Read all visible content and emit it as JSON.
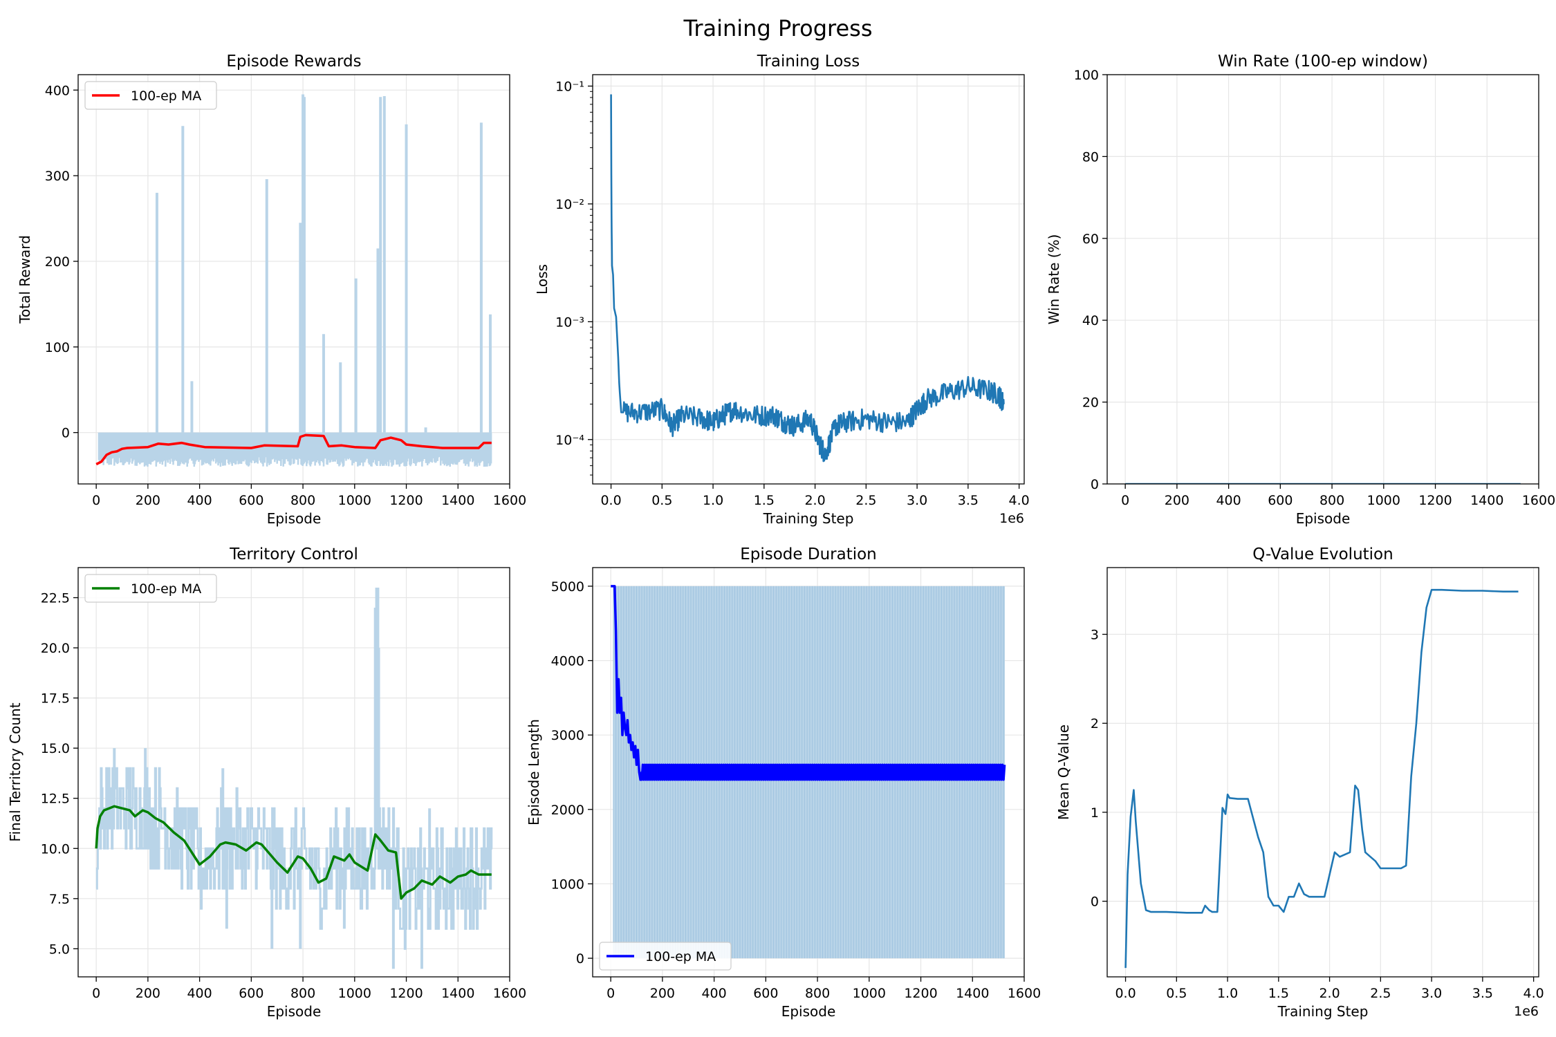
{
  "figure": {
    "title": "Training Progress"
  },
  "chart_data": [
    {
      "id": "rewards",
      "type": "line",
      "title": "Episode Rewards",
      "xlabel": "Episode",
      "ylabel": "Total Reward",
      "xlim": [
        -70,
        1600
      ],
      "ylim": [
        -60,
        418
      ],
      "xticks": [
        0,
        200,
        400,
        600,
        800,
        1000,
        1200,
        1400,
        1600
      ],
      "xtick_labels": [
        "0",
        "200",
        "400",
        "600",
        "800",
        "1000",
        "1200",
        "1400",
        "1600"
      ],
      "yticks": [
        0,
        100,
        200,
        300,
        400
      ],
      "ytick_labels": [
        "0",
        "100",
        "200",
        "300",
        "400"
      ],
      "grid": true,
      "legend": {
        "placement": "upper-left",
        "entries": [
          "100-ep MA"
        ]
      },
      "band": {
        "color": "#b9d4e8",
        "x": [
          10,
          1530
        ],
        "low": -40,
        "high": 0
      },
      "spikes": [
        [
          235,
          280
        ],
        [
          335,
          358
        ],
        [
          370,
          60
        ],
        [
          660,
          296
        ],
        [
          790,
          245
        ],
        [
          800,
          395
        ],
        [
          805,
          392
        ],
        [
          880,
          115
        ],
        [
          945,
          82
        ],
        [
          1005,
          180
        ],
        [
          1090,
          215
        ],
        [
          1100,
          392
        ],
        [
          1115,
          393
        ],
        [
          1200,
          360
        ],
        [
          1275,
          6
        ],
        [
          1490,
          362
        ],
        [
          1525,
          138
        ]
      ],
      "series": [
        {
          "name": "100-ep MA",
          "color": "#ff0000",
          "kind": "line",
          "x": [
            0,
            20,
            40,
            60,
            80,
            100,
            120,
            200,
            240,
            280,
            330,
            360,
            420,
            600,
            650,
            780,
            790,
            810,
            880,
            900,
            950,
            1000,
            1080,
            1100,
            1140,
            1180,
            1200,
            1260,
            1340,
            1480,
            1500,
            1530
          ],
          "y": [
            -37,
            -34,
            -26,
            -23,
            -22,
            -19,
            -18,
            -17,
            -13,
            -14,
            -12,
            -14,
            -17,
            -18,
            -15,
            -16,
            -5,
            -3,
            -4,
            -16,
            -15,
            -17,
            -18,
            -9,
            -6,
            -9,
            -14,
            -16,
            -18,
            -18,
            -12,
            -12
          ]
        }
      ]
    },
    {
      "id": "loss",
      "type": "line",
      "title": "Training Loss",
      "xlabel": "Training Step",
      "ylabel": "Loss",
      "yscale": "log",
      "xlim": [
        -0.18,
        4.05
      ],
      "ylim": [
        4.2e-05,
        0.125
      ],
      "x_multiplier": "1e6",
      "xticks": [
        0.0,
        0.5,
        1.0,
        1.5,
        2.0,
        2.5,
        3.0,
        3.5,
        4.0
      ],
      "xtick_labels": [
        "0.0",
        "0.5",
        "1.0",
        "1.5",
        "2.0",
        "2.5",
        "3.0",
        "3.5",
        "4.0"
      ],
      "yticks": [
        0.0001,
        0.001,
        0.01,
        0.1
      ],
      "ytick_labels": [
        "10⁻⁴",
        "10⁻³",
        "10⁻²",
        "10⁻¹"
      ],
      "grid": true,
      "series": [
        {
          "color": "#1f77b4",
          "kind": "line",
          "noise": 0.07,
          "x": [
            0.0,
            0.005,
            0.01,
            0.02,
            0.03,
            0.05,
            0.07,
            0.08,
            0.1,
            0.12,
            0.3,
            0.5,
            0.6,
            0.7,
            0.9,
            1.0,
            1.1,
            1.2,
            1.4,
            1.6,
            1.7,
            1.8,
            1.95,
            2.05,
            2.1,
            2.2,
            2.3,
            2.5,
            2.7,
            2.9,
            3.0,
            3.1,
            3.3,
            3.5,
            3.7,
            3.8,
            3.85
          ],
          "y": [
            0.085,
            0.008,
            0.003,
            0.0025,
            0.0013,
            0.0011,
            0.0005,
            0.0003,
            0.00017,
            0.00017,
            0.00017,
            0.00018,
            0.00013,
            0.00016,
            0.00015,
            0.00014,
            0.00016,
            0.00018,
            0.00016,
            0.00016,
            0.00014,
            0.00013,
            0.00015,
            9e-05,
            7.5e-05,
            0.00013,
            0.00014,
            0.00015,
            0.00014,
            0.00014,
            0.00018,
            0.00022,
            0.00025,
            0.00028,
            0.00026,
            0.00024,
            0.0002
          ]
        }
      ]
    },
    {
      "id": "winrate",
      "type": "line",
      "title": "Win Rate (100-ep window)",
      "xlabel": "Episode",
      "ylabel": "Win Rate (%)",
      "xlim": [
        -70,
        1600
      ],
      "ylim": [
        0,
        100
      ],
      "xticks": [
        0,
        200,
        400,
        600,
        800,
        1000,
        1200,
        1400,
        1600
      ],
      "xtick_labels": [
        "0",
        "200",
        "400",
        "600",
        "800",
        "1000",
        "1200",
        "1400",
        "1600"
      ],
      "yticks": [
        0,
        20,
        40,
        60,
        80,
        100
      ],
      "ytick_labels": [
        "0",
        "20",
        "40",
        "60",
        "80",
        "100"
      ],
      "grid": true,
      "series": [
        {
          "color": "#1f77b4",
          "kind": "line",
          "x": [
            0,
            1530
          ],
          "y": [
            0,
            0
          ]
        }
      ]
    },
    {
      "id": "territory",
      "type": "line",
      "title": "Territory Control",
      "xlabel": "Episode",
      "ylabel": "Final Territory Count",
      "xlim": [
        -70,
        1600
      ],
      "ylim": [
        3.6,
        24.0
      ],
      "xticks": [
        0,
        200,
        400,
        600,
        800,
        1000,
        1200,
        1400,
        1600
      ],
      "xtick_labels": [
        "0",
        "200",
        "400",
        "600",
        "800",
        "1000",
        "1200",
        "1400",
        "1600"
      ],
      "yticks": [
        5.0,
        7.5,
        10.0,
        12.5,
        15.0,
        17.5,
        20.0,
        22.5
      ],
      "ytick_labels": [
        "5.0",
        "7.5",
        "10.0",
        "12.5",
        "15.0",
        "17.5",
        "20.0",
        "22.5"
      ],
      "grid": true,
      "legend": {
        "placement": "upper-left",
        "entries": [
          "100-ep MA"
        ]
      },
      "raw": {
        "color": "#b9d4e8",
        "spread": 2.4,
        "extremes": [
          [
            70,
            15
          ],
          [
            190,
            15
          ],
          [
            490,
            14
          ],
          [
            505,
            6
          ],
          [
            680,
            5
          ],
          [
            790,
            5
          ],
          [
            960,
            6
          ],
          [
            1080,
            22
          ],
          [
            1085,
            23
          ],
          [
            1090,
            23
          ],
          [
            1093,
            20
          ],
          [
            1150,
            4
          ],
          [
            1260,
            4
          ],
          [
            1290,
            12
          ]
        ]
      },
      "series": [
        {
          "name": "100-ep MA",
          "color": "#008000",
          "kind": "line",
          "x": [
            0,
            5,
            15,
            30,
            50,
            70,
            100,
            130,
            150,
            180,
            200,
            230,
            260,
            300,
            340,
            400,
            440,
            480,
            500,
            540,
            580,
            620,
            640,
            680,
            700,
            740,
            780,
            800,
            830,
            860,
            890,
            920,
            960,
            980,
            1000,
            1050,
            1080,
            1100,
            1130,
            1160,
            1180,
            1200,
            1230,
            1260,
            1300,
            1330,
            1370,
            1400,
            1430,
            1450,
            1480,
            1500,
            1530
          ],
          "y": [
            10.0,
            11.0,
            11.6,
            11.9,
            12.0,
            12.1,
            12.0,
            11.9,
            11.6,
            11.9,
            11.8,
            11.5,
            11.3,
            10.8,
            10.4,
            9.2,
            9.6,
            10.2,
            10.3,
            10.2,
            9.9,
            10.3,
            10.2,
            9.6,
            9.3,
            8.8,
            9.6,
            9.5,
            9.0,
            8.3,
            8.5,
            9.6,
            9.4,
            9.7,
            9.3,
            8.9,
            10.7,
            10.4,
            9.9,
            9.8,
            7.5,
            7.8,
            8.0,
            8.4,
            8.2,
            8.6,
            8.3,
            8.6,
            8.7,
            8.9,
            8.7,
            8.7,
            8.7
          ]
        }
      ]
    },
    {
      "id": "duration",
      "type": "line",
      "title": "Episode Duration",
      "xlabel": "Episode",
      "ylabel": "Episode Length",
      "xlim": [
        -70,
        1600
      ],
      "ylim": [
        -250,
        5250
      ],
      "xticks": [
        0,
        200,
        400,
        600,
        800,
        1000,
        1200,
        1400,
        1600
      ],
      "xtick_labels": [
        "0",
        "200",
        "400",
        "600",
        "800",
        "1000",
        "1200",
        "1400",
        "1600"
      ],
      "yticks": [
        0,
        1000,
        2000,
        3000,
        4000,
        5000
      ],
      "ytick_labels": [
        "0",
        "1000",
        "2000",
        "3000",
        "4000",
        "5000"
      ],
      "grid": true,
      "legend": {
        "placement": "lower-left",
        "entries": [
          "100-ep MA"
        ]
      },
      "band": {
        "color": "#b9d4e8",
        "x": [
          10,
          1525
        ],
        "low": 0,
        "high": 5000
      },
      "series": [
        {
          "name": "100-ep MA",
          "color": "#0000ff",
          "kind": "line",
          "x": [
            0,
            15,
            20,
            25,
            30,
            35,
            40,
            45,
            50,
            55,
            60,
            65,
            70,
            75,
            80,
            85,
            90,
            95,
            100,
            105,
            110,
            115,
            120
          ],
          "y": [
            5000,
            5000,
            4400,
            3300,
            3750,
            3300,
            3500,
            3000,
            3300,
            3100,
            3000,
            3200,
            2900,
            3000,
            2800,
            2900,
            2700,
            2850,
            2600,
            2800,
            2500,
            2400,
            2500
          ],
          "oscillate": {
            "from": 120,
            "to": 1525,
            "low": 2400,
            "high": 2600,
            "step": 4
          }
        }
      ]
    },
    {
      "id": "qvalue",
      "type": "line",
      "title": "Q-Value Evolution",
      "xlabel": "Training Step",
      "ylabel": "Mean Q-Value",
      "xlim": [
        -0.18,
        4.05
      ],
      "ylim": [
        -0.85,
        3.75
      ],
      "x_multiplier": "1e6",
      "xticks": [
        0.0,
        0.5,
        1.0,
        1.5,
        2.0,
        2.5,
        3.0,
        3.5,
        4.0
      ],
      "xtick_labels": [
        "0.0",
        "0.5",
        "1.0",
        "1.5",
        "2.0",
        "2.5",
        "3.0",
        "3.5",
        "4.0"
      ],
      "yticks": [
        0,
        1,
        2,
        3
      ],
      "ytick_labels": [
        "0",
        "1",
        "2",
        "3"
      ],
      "grid": true,
      "series": [
        {
          "color": "#1f77b4",
          "kind": "line",
          "x": [
            0.0,
            0.02,
            0.05,
            0.08,
            0.1,
            0.15,
            0.2,
            0.25,
            0.4,
            0.6,
            0.75,
            0.78,
            0.82,
            0.85,
            0.88,
            0.9,
            0.95,
            0.98,
            1.0,
            1.02,
            1.1,
            1.2,
            1.3,
            1.35,
            1.4,
            1.45,
            1.5,
            1.55,
            1.6,
            1.65,
            1.7,
            1.75,
            1.8,
            1.85,
            1.95,
            2.0,
            2.05,
            2.1,
            2.2,
            2.25,
            2.28,
            2.32,
            2.35,
            2.4,
            2.45,
            2.5,
            2.55,
            2.6,
            2.7,
            2.75,
            2.8,
            2.85,
            2.9,
            2.95,
            3.0,
            3.1,
            3.3,
            3.5,
            3.7,
            3.85
          ],
          "y": [
            -0.75,
            0.3,
            0.95,
            1.25,
            0.9,
            0.2,
            -0.1,
            -0.12,
            -0.12,
            -0.13,
            -0.13,
            -0.05,
            -0.1,
            -0.12,
            -0.12,
            -0.12,
            1.05,
            0.98,
            1.2,
            1.16,
            1.15,
            1.15,
            0.72,
            0.55,
            0.05,
            -0.05,
            -0.05,
            -0.12,
            0.05,
            0.05,
            0.2,
            0.08,
            0.05,
            0.05,
            0.05,
            0.3,
            0.55,
            0.5,
            0.55,
            1.3,
            1.25,
            0.8,
            0.55,
            0.5,
            0.45,
            0.37,
            0.37,
            0.37,
            0.37,
            0.4,
            1.4,
            2.0,
            2.8,
            3.3,
            3.5,
            3.5,
            3.49,
            3.49,
            3.48,
            3.48
          ]
        }
      ]
    }
  ]
}
